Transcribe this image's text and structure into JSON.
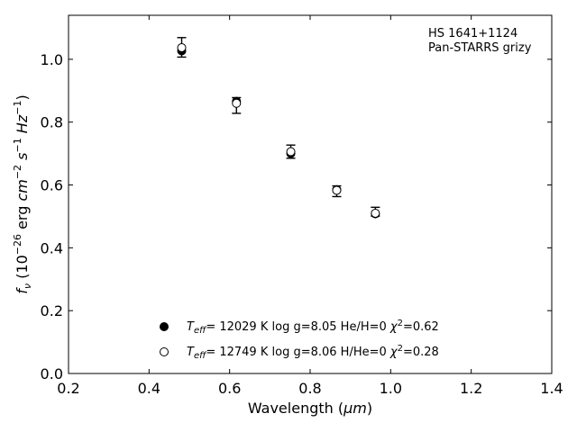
{
  "chart_data": {
    "type": "scatter",
    "xlabel_main": "Wavelength (",
    "xlabel_unit": "μm",
    "xlabel_close": ")",
    "ylabel": "f_ν (10^−26 erg cm^−2 s^−1 Hz^−1)",
    "xlim": [
      0.2,
      1.4
    ],
    "ylim": [
      0.0,
      1.14
    ],
    "xticks": [
      0.2,
      0.4,
      0.6,
      0.8,
      1.0,
      1.2,
      1.4
    ],
    "yticks": [
      0.0,
      0.2,
      0.4,
      0.6,
      0.8,
      1.0
    ],
    "xtick_labels": [
      "0.2",
      "0.4",
      "0.6",
      "0.8",
      "1.0",
      "1.2",
      "1.4"
    ],
    "ytick_labels": [
      "0.0",
      "0.2",
      "0.4",
      "0.6",
      "0.8",
      "1.0"
    ],
    "annotation": {
      "line1": "HS 1641+1124",
      "line2": "Pan-STARRS grizy"
    },
    "observed": {
      "x": [
        0.481,
        0.617,
        0.752,
        0.866,
        0.962
      ],
      "y": [
        1.038,
        0.853,
        0.706,
        0.58,
        0.515
      ],
      "yerr": [
        0.031,
        0.025,
        0.021,
        0.017,
        0.014
      ]
    },
    "series": [
      {
        "marker": "filled",
        "label_teff_symbol": "T",
        "label_teff_sub": "eff",
        "label_mid": "= 12029 K  log g=8.05  He/H=0  ",
        "label_chi": "χ",
        "label_chi_exp": "2",
        "label_end": "=0.62",
        "x": [
          0.481,
          0.617,
          0.752,
          0.866,
          0.962
        ],
        "y": [
          1.027,
          0.866,
          0.7,
          0.585,
          0.508
        ]
      },
      {
        "marker": "open",
        "label_teff_symbol": "T",
        "label_teff_sub": "eff",
        "label_mid": "= 12749 K  log g=8.06  H/He=0  ",
        "label_chi": "χ",
        "label_chi_exp": "2",
        "label_end": "=0.28",
        "x": [
          0.481,
          0.617,
          0.752,
          0.866,
          0.962
        ],
        "y": [
          1.037,
          0.86,
          0.706,
          0.583,
          0.51
        ]
      }
    ]
  }
}
